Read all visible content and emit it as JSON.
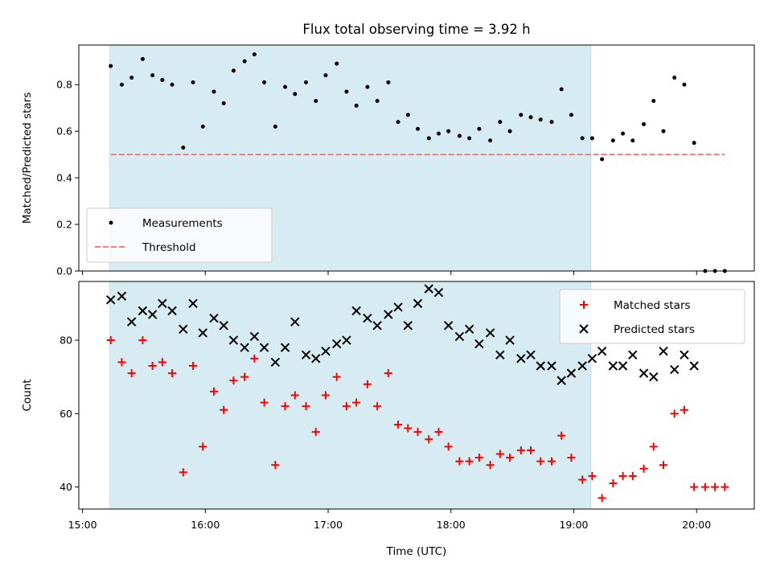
{
  "chart_data": {
    "title": "Flux total observing time = 3.92 h",
    "xlabel": "Time (UTC)",
    "x_ticks": [
      "15:00",
      "16:00",
      "17:00",
      "18:00",
      "19:00",
      "20:00"
    ],
    "x_range_hours": [
      14.97,
      20.47
    ],
    "shaded_interval_hours": [
      15.22,
      19.14
    ],
    "panels": [
      {
        "type": "scatter",
        "ylabel": "Matched/Predicted stars",
        "ylim": [
          0.0,
          0.97
        ],
        "y_ticks": [
          0.0,
          0.2,
          0.4,
          0.6,
          0.8
        ],
        "legend_position": "lower-left",
        "series": [
          {
            "name": "Measurements",
            "marker": "dot",
            "color": "#000000",
            "x": [
              15.23,
              15.32,
              15.4,
              15.49,
              15.57,
              15.65,
              15.73,
              15.82,
              15.9,
              15.98,
              16.07,
              16.15,
              16.23,
              16.32,
              16.4,
              16.48,
              16.57,
              16.65,
              16.73,
              16.82,
              16.9,
              16.98,
              17.07,
              17.15,
              17.23,
              17.32,
              17.4,
              17.49,
              17.57,
              17.65,
              17.73,
              17.82,
              17.9,
              17.98,
              18.07,
              18.15,
              18.23,
              18.32,
              18.4,
              18.48,
              18.57,
              18.65,
              18.73,
              18.82,
              18.9,
              18.98,
              19.07,
              19.15,
              19.23,
              19.32,
              19.4,
              19.48,
              19.57,
              19.65,
              19.73,
              19.82,
              19.9,
              19.98,
              20.07,
              20.15,
              20.23
            ],
            "y": [
              0.88,
              0.8,
              0.83,
              0.91,
              0.84,
              0.82,
              0.8,
              0.53,
              0.81,
              0.62,
              0.77,
              0.72,
              0.86,
              0.9,
              0.93,
              0.81,
              0.62,
              0.79,
              0.76,
              0.81,
              0.73,
              0.84,
              0.89,
              0.77,
              0.71,
              0.79,
              0.73,
              0.81,
              0.64,
              0.67,
              0.61,
              0.57,
              0.59,
              0.6,
              0.58,
              0.57,
              0.61,
              0.56,
              0.64,
              0.6,
              0.67,
              0.66,
              0.65,
              0.64,
              0.78,
              0.67,
              0.57,
              0.57,
              0.48,
              0.56,
              0.59,
              0.56,
              0.63,
              0.73,
              0.6,
              0.83,
              0.8,
              0.55,
              0.0,
              0.0,
              0.0
            ]
          },
          {
            "name": "Threshold",
            "line": "dashed",
            "color": "#f08080",
            "x": [
              15.23,
              20.23
            ],
            "y": [
              0.5,
              0.5
            ]
          }
        ]
      },
      {
        "type": "scatter",
        "ylabel": "Count",
        "ylim": [
          34,
          96
        ],
        "y_ticks": [
          40,
          60,
          80
        ],
        "legend_position": "upper-right",
        "series": [
          {
            "name": "Matched stars",
            "marker": "plus",
            "color": "#ff0000",
            "x": [
              15.23,
              15.32,
              15.4,
              15.49,
              15.57,
              15.65,
              15.73,
              15.82,
              15.9,
              15.98,
              16.07,
              16.15,
              16.23,
              16.32,
              16.4,
              16.48,
              16.57,
              16.65,
              16.73,
              16.82,
              16.9,
              16.98,
              17.07,
              17.15,
              17.23,
              17.32,
              17.4,
              17.49,
              17.57,
              17.65,
              17.73,
              17.82,
              17.9,
              17.98,
              18.07,
              18.15,
              18.23,
              18.32,
              18.4,
              18.48,
              18.57,
              18.65,
              18.73,
              18.82,
              18.9,
              18.98,
              19.07,
              19.15,
              19.23,
              19.32,
              19.4,
              19.48,
              19.57,
              19.65,
              19.73,
              19.82,
              19.9,
              19.98,
              20.07,
              20.15,
              20.23
            ],
            "y": [
              80,
              74,
              71,
              80,
              73,
              74,
              71,
              44,
              73,
              51,
              66,
              61,
              69,
              70,
              75,
              63,
              46,
              62,
              65,
              62,
              55,
              65,
              70,
              62,
              63,
              68,
              62,
              71,
              57,
              56,
              55,
              53,
              55,
              51,
              47,
              47,
              48,
              46,
              49,
              48,
              50,
              50,
              47,
              47,
              54,
              48,
              42,
              43,
              37,
              41,
              43,
              43,
              45,
              51,
              46,
              60,
              61,
              40,
              40,
              40,
              40
            ]
          },
          {
            "name": "Predicted stars",
            "marker": "x",
            "color": "#000000",
            "x": [
              15.23,
              15.32,
              15.4,
              15.49,
              15.57,
              15.65,
              15.73,
              15.82,
              15.9,
              15.98,
              16.07,
              16.15,
              16.23,
              16.32,
              16.4,
              16.48,
              16.57,
              16.65,
              16.73,
              16.82,
              16.9,
              16.98,
              17.07,
              17.15,
              17.23,
              17.32,
              17.4,
              17.49,
              17.57,
              17.65,
              17.73,
              17.82,
              17.9,
              17.98,
              18.07,
              18.15,
              18.23,
              18.32,
              18.4,
              18.48,
              18.57,
              18.65,
              18.73,
              18.82,
              18.9,
              18.98,
              19.07,
              19.15,
              19.23,
              19.32,
              19.4,
              19.48,
              19.57,
              19.65,
              19.73,
              19.82,
              19.9,
              19.98
            ],
            "y": [
              91,
              92,
              85,
              88,
              87,
              90,
              88,
              83,
              90,
              82,
              86,
              84,
              80,
              78,
              81,
              78,
              74,
              78,
              85,
              76,
              75,
              77,
              79,
              80,
              88,
              86,
              84,
              87,
              89,
              84,
              90,
              94,
              93,
              84,
              81,
              83,
              79,
              82,
              76,
              80,
              75,
              76,
              73,
              73,
              69,
              71,
              73,
              75,
              77,
              73,
              73,
              76,
              71,
              70,
              77,
              72,
              76,
              73
            ]
          }
        ]
      }
    ]
  }
}
